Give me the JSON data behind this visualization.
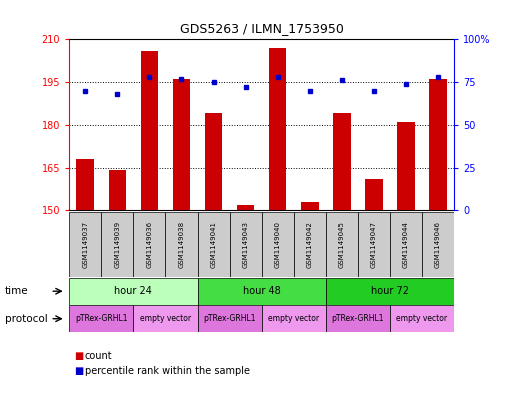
{
  "title": "GDS5263 / ILMN_1753950",
  "samples": [
    "GSM1149037",
    "GSM1149039",
    "GSM1149036",
    "GSM1149038",
    "GSM1149041",
    "GSM1149043",
    "GSM1149040",
    "GSM1149042",
    "GSM1149045",
    "GSM1149047",
    "GSM1149044",
    "GSM1149046"
  ],
  "counts": [
    168,
    164,
    206,
    196,
    184,
    152,
    207,
    153,
    184,
    161,
    181,
    196
  ],
  "percentile_ranks": [
    70,
    68,
    78,
    77,
    75,
    72,
    78,
    70,
    76,
    70,
    74,
    78
  ],
  "ylim_left": [
    150,
    210
  ],
  "ylim_right": [
    0,
    100
  ],
  "yticks_left": [
    150,
    165,
    180,
    195,
    210
  ],
  "yticks_right": [
    0,
    25,
    50,
    75,
    100
  ],
  "bar_color": "#cc0000",
  "dot_color": "#0000cc",
  "background_color": "#ffffff",
  "grid_color": "#000000",
  "time_groups": [
    {
      "label": "hour 24",
      "start": 0,
      "end": 4,
      "color": "#bbffbb"
    },
    {
      "label": "hour 48",
      "start": 4,
      "end": 8,
      "color": "#44dd44"
    },
    {
      "label": "hour 72",
      "start": 8,
      "end": 12,
      "color": "#22cc22"
    }
  ],
  "protocol_groups": [
    {
      "label": "pTRex-GRHL1",
      "start": 0,
      "end": 2,
      "color": "#dd77dd"
    },
    {
      "label": "empty vector",
      "start": 2,
      "end": 4,
      "color": "#ee99ee"
    },
    {
      "label": "pTRex-GRHL1",
      "start": 4,
      "end": 6,
      "color": "#dd77dd"
    },
    {
      "label": "empty vector",
      "start": 6,
      "end": 8,
      "color": "#ee99ee"
    },
    {
      "label": "pTRex-GRHL1",
      "start": 8,
      "end": 10,
      "color": "#dd77dd"
    },
    {
      "label": "empty vector",
      "start": 10,
      "end": 12,
      "color": "#ee99ee"
    }
  ]
}
